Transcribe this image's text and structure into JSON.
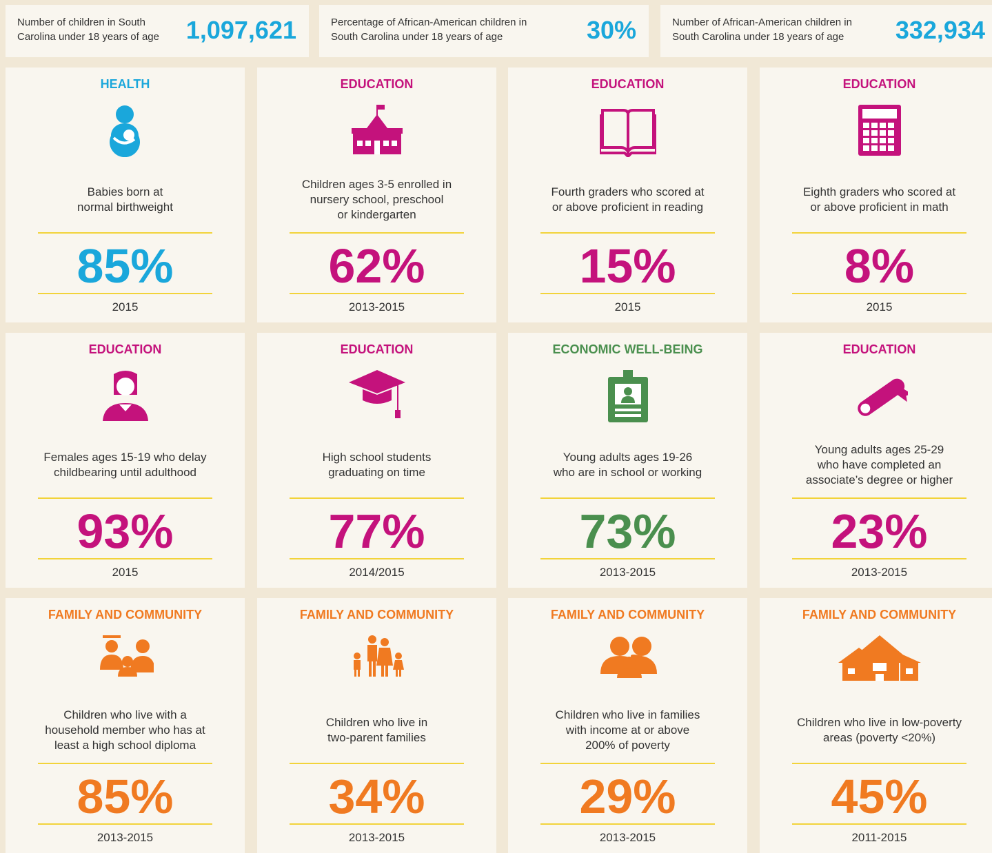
{
  "stats": [
    {
      "label": [
        "Number of children in South",
        "Carolina under 18 years of age"
      ],
      "value": "1,097,621"
    },
    {
      "label": [
        "Percentage of African-American children in",
        "South Carolina under 18 years of age"
      ],
      "value": "30%"
    },
    {
      "label": [
        "Number of African-American children in",
        "South Carolina under 18 years of age"
      ],
      "value": "332,934"
    }
  ],
  "stat_color": "#1aa7db",
  "cards": [
    {
      "category": "HEALTH",
      "color": "#1aa7db",
      "description": [
        "Babies born at",
        "normal birthweight"
      ],
      "value": "85%",
      "period": "2015"
    },
    {
      "category": "EDUCATION",
      "color": "#c4127c",
      "description": [
        "Children ages 3-5 enrolled in",
        "nursery school, preschool",
        "or kindergarten"
      ],
      "value": "62%",
      "period": "2013-2015"
    },
    {
      "category": "EDUCATION",
      "color": "#c4127c",
      "description": [
        "Fourth graders who scored at",
        "or above proficient in reading"
      ],
      "value": "15%",
      "period": "2015"
    },
    {
      "category": "EDUCATION",
      "color": "#c4127c",
      "description": [
        "Eighth graders who scored at",
        "or above proficient in math"
      ],
      "value": "8%",
      "period": "2015"
    },
    {
      "category": "EDUCATION",
      "color": "#c4127c",
      "description": [
        "Females ages 15-19 who delay",
        "childbearing until adulthood"
      ],
      "value": "93%",
      "period": "2015"
    },
    {
      "category": "EDUCATION",
      "color": "#c4127c",
      "description": [
        "High school students",
        "graduating on time"
      ],
      "value": "77%",
      "period": "2014/2015"
    },
    {
      "category": "ECONOMIC WELL-BEING",
      "color": "#4a8f4e",
      "description": [
        "Young adults ages 19-26",
        "who are in school or working"
      ],
      "value": "73%",
      "period": "2013-2015"
    },
    {
      "category": "EDUCATION",
      "color": "#c4127c",
      "description": [
        "Young adults ages 25-29",
        "who have completed an",
        "associate’s degree or higher"
      ],
      "value": "23%",
      "period": "2013-2015"
    },
    {
      "category": "FAMILY AND COMMUNITY",
      "color": "#f07a21",
      "description": [
        "Children who live with a",
        "household member who has at",
        "least a high school diploma"
      ],
      "value": "85%",
      "period": "2013-2015"
    },
    {
      "category": "FAMILY AND COMMUNITY",
      "color": "#f07a21",
      "description": [
        "Children who live in",
        "two-parent families"
      ],
      "value": "34%",
      "period": "2013-2015"
    },
    {
      "category": "FAMILY AND COMMUNITY",
      "color": "#f07a21",
      "description": [
        "Children who live in families",
        "with income at or above",
        "200% of poverty"
      ],
      "value": "29%",
      "period": "2013-2015"
    },
    {
      "category": "FAMILY AND COMMUNITY",
      "color": "#f07a21",
      "description": [
        "Children who live in low-poverty",
        "areas (poverty <20%)"
      ],
      "value": "45%",
      "period": "2011-2015"
    }
  ]
}
